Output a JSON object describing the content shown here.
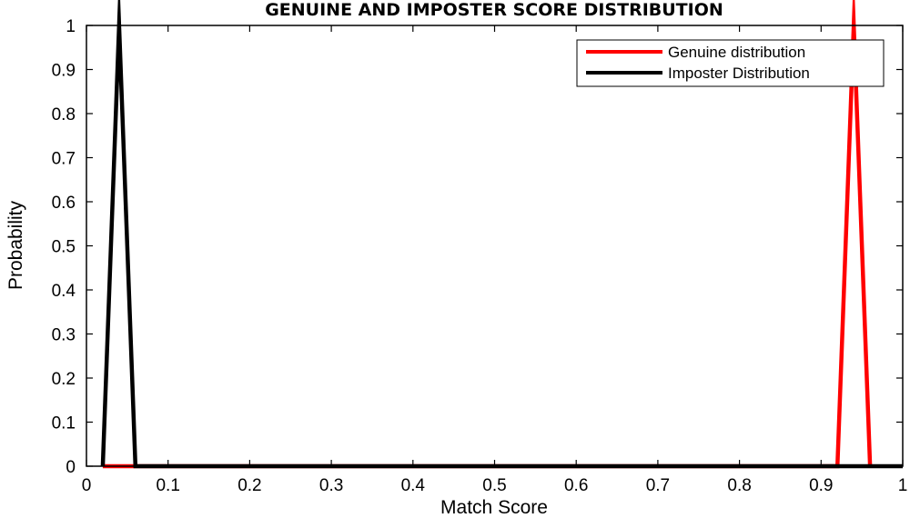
{
  "chart_data": {
    "type": "line",
    "title": "GENUINE AND IMPOSTER SCORE DISTRIBUTION",
    "xlabel": "Match Score",
    "ylabel": "Probability",
    "xlim": [
      0,
      1
    ],
    "ylim": [
      0,
      1
    ],
    "xticks": [
      "0",
      "0.1",
      "0.2",
      "0.3",
      "0.4",
      "0.5",
      "0.6",
      "0.7",
      "0.8",
      "0.9",
      "1"
    ],
    "yticks": [
      "0",
      "0.1",
      "0.2",
      "0.3",
      "0.4",
      "0.5",
      "0.6",
      "0.7",
      "0.8",
      "0.9",
      "1"
    ],
    "grid": false,
    "legend_position": "top-right",
    "series": [
      {
        "name": "Genuine distribution",
        "color": "#ff0000",
        "x": [
          0.02,
          0.04,
          0.06,
          0.92,
          0.94,
          0.96
        ],
        "y": [
          0,
          0,
          0,
          0,
          1,
          0
        ]
      },
      {
        "name": "Imposter Distribution",
        "color": "#000000",
        "x": [
          0.02,
          0.04,
          0.06,
          1.0
        ],
        "y": [
          0,
          1,
          0,
          0
        ]
      }
    ]
  }
}
